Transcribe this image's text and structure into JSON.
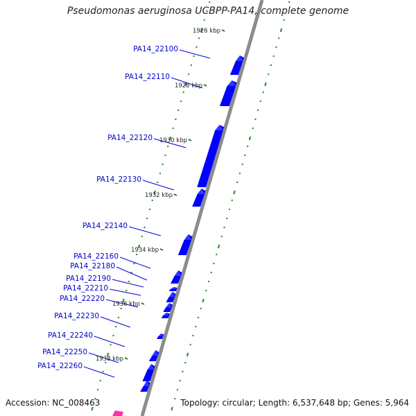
{
  "title": "Pseudomonas aeruginosa UCBPP-PA14, complete genome",
  "footer": {
    "accession": "Accession: NC_008463",
    "topology": "Topology: circular; Length: 6,537,648 bp; Genes: 5,964"
  },
  "colors": {
    "backbone": "#8c8c8c",
    "gene": "#0000ff",
    "tick": "#1b8a1b",
    "label": "#0000cc",
    "highlight": "#ff33aa"
  },
  "scale_labels": [
    "1926 kbp",
    "1928 kbp",
    "1930 kbp",
    "1932 kbp",
    "1934 kbp",
    "1936 kbp",
    "1938 kbp"
  ],
  "genes": [
    "PA14_22100",
    "PA14_22110",
    "PA14_22120",
    "PA14_22130",
    "PA14_22140",
    "PA14_22160",
    "PA14_22180",
    "PA14_22190",
    "PA14_22210",
    "PA14_22220",
    "PA14_22230",
    "PA14_22240",
    "PA14_22250",
    "PA14_22260"
  ]
}
